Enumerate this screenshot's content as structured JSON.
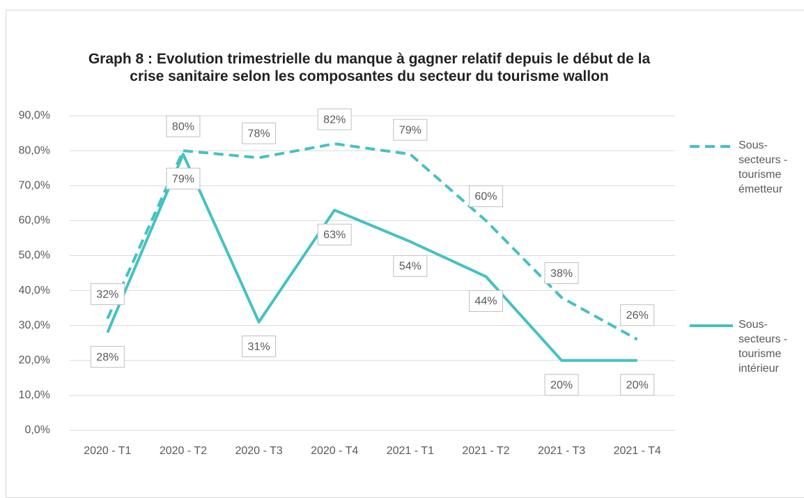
{
  "chart_data": {
    "type": "line",
    "title": "Graph 8 : Evolution trimestrielle du manque à gagner relatif depuis le début de la crise sanitaire selon les composantes du secteur du tourisme wallon",
    "categories": [
      "2020 - T1",
      "2020 - T2",
      "2020 - T3",
      "2020 - T4",
      "2021 - T1",
      "2021 - T2",
      "2021 - T3",
      "2021 - T4"
    ],
    "series": [
      {
        "name": "Sous-secteurs - tourisme émetteur",
        "color": "#45c1c2",
        "dash": true,
        "values": [
          32,
          80,
          78,
          82,
          79,
          60,
          38,
          26
        ],
        "value_labels": [
          "32%",
          "80%",
          "78%",
          "82%",
          "79%",
          "60%",
          "38%",
          "26%"
        ]
      },
      {
        "name": "Sous-secteurs - tourisme intérieur",
        "color": "#45c1c2",
        "dash": false,
        "values": [
          28,
          79,
          31,
          63,
          54,
          44,
          20,
          20
        ],
        "value_labels": [
          "28%",
          "79%",
          "31%",
          "63%",
          "54%",
          "44%",
          "20%",
          "20%"
        ]
      }
    ],
    "ylim": [
      0,
      90
    ],
    "yticks": [
      {
        "value": 0,
        "label": "0,0%"
      },
      {
        "value": 10,
        "label": "10,0%"
      },
      {
        "value": 20,
        "label": "20,0%"
      },
      {
        "value": 30,
        "label": "30,0%"
      },
      {
        "value": 40,
        "label": "40,0%"
      },
      {
        "value": 50,
        "label": "50,0%"
      },
      {
        "value": 60,
        "label": "60,0%"
      },
      {
        "value": 70,
        "label": "70,0%"
      },
      {
        "value": 80,
        "label": "80,0%"
      },
      {
        "value": 90,
        "label": "90,0%"
      }
    ],
    "grid": true,
    "legend": "right"
  }
}
